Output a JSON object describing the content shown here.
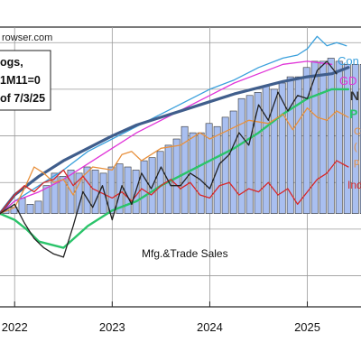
{
  "source_text": "rowser.com",
  "legend_box": {
    "line1": "ogs,",
    "line2": "1M11=0",
    "line3": "of 7/3/25"
  },
  "chart_data": {
    "type": "line",
    "x_ticks": [
      "2022",
      "2023",
      "2024",
      "2025"
    ],
    "x_range": [
      2021.85,
      2025.55
    ],
    "y_range": [
      -3.0,
      6.0
    ],
    "grid": true,
    "annotation": "Mfg.&Trade Sales",
    "series_labels": [
      {
        "text": "Con",
        "color": "#3aa0dc"
      },
      {
        "text": "GD",
        "color": "#e033d8"
      },
      {
        "text": "N",
        "color": "#333333"
      },
      {
        "text": "P",
        "color": "#2bc46a"
      },
      {
        "text": "C",
        "color": "#e8903c"
      },
      {
        "text": "(",
        "color": "#e8903c"
      },
      {
        "text": "p",
        "color": "#e8903c"
      },
      {
        "text": "Ind",
        "color": "#d82828"
      }
    ],
    "bars": {
      "name": "Mfg.&Trade Sales",
      "color": "#a9bff0",
      "start": 2021.91,
      "step": 0.0833,
      "values": [
        0.1,
        0.2,
        0.5,
        0.3,
        0.4,
        0.9,
        1.3,
        1.2,
        1.4,
        1.3,
        1.5,
        1.4,
        1.3,
        1.5,
        1.6,
        1.5,
        1.4,
        1.7,
        1.8,
        2.0,
        2.2,
        2.4,
        2.8,
        2.6,
        2.6,
        2.9,
        2.8,
        3.1,
        3.3,
        3.7,
        3.8,
        3.9,
        4.1,
        4.0,
        4.2,
        4.4,
        4.4,
        4.7,
        4.9,
        4.9,
        5.0,
        4.9,
        4.8,
        4.8,
        4.8,
        4.6
      ]
    },
    "series": [
      {
        "key": "consumption",
        "color": "#3aa0dc",
        "width": 1.3,
        "x": [
          2021.85,
          2022.0,
          2022.25,
          2022.5,
          2022.75,
          2023.0,
          2023.25,
          2023.5,
          2023.75,
          2024.0,
          2024.25,
          2024.5,
          2024.75,
          2024.9,
          2025.0,
          2025.1,
          2025.2,
          2025.3,
          2025.4
        ],
        "y": [
          0.0,
          0.4,
          0.9,
          1.4,
          2.0,
          2.4,
          2.8,
          3.2,
          3.6,
          4.0,
          4.3,
          4.7,
          5.0,
          5.1,
          5.3,
          5.7,
          5.4,
          5.5,
          5.4
        ]
      },
      {
        "key": "gdp",
        "color": "#e033d8",
        "width": 1.3,
        "x": [
          2021.85,
          2022.0,
          2022.25,
          2022.5,
          2022.75,
          2023.0,
          2023.25,
          2023.5,
          2023.75,
          2024.0,
          2024.25,
          2024.5,
          2024.75,
          2025.0,
          2025.25
        ],
        "y": [
          0.0,
          0.4,
          0.7,
          1.1,
          1.6,
          2.1,
          2.6,
          3.0,
          3.4,
          3.8,
          4.2,
          4.5,
          4.8,
          4.9,
          4.8
        ]
      },
      {
        "key": "nonfarm",
        "color": "#405e8c",
        "width": 3.2,
        "x": [
          2021.85,
          2022.0,
          2022.25,
          2022.5,
          2022.75,
          2023.0,
          2023.25,
          2023.5,
          2023.75,
          2024.0,
          2024.25,
          2024.5,
          2024.75,
          2025.0,
          2025.25,
          2025.42
        ],
        "y": [
          0.0,
          0.6,
          1.2,
          1.7,
          2.1,
          2.5,
          2.85,
          3.1,
          3.35,
          3.6,
          3.85,
          4.05,
          4.25,
          4.4,
          4.5,
          4.7
        ]
      },
      {
        "key": "personal-income",
        "color": "#2bc46a",
        "width": 2.4,
        "x": [
          2021.85,
          2022.0,
          2022.12,
          2022.25,
          2022.5,
          2022.75,
          2023.0,
          2023.25,
          2023.5,
          2023.75,
          2024.0,
          2024.25,
          2024.5,
          2024.75,
          2025.0,
          2025.25,
          2025.42
        ],
        "y": [
          0.0,
          -0.2,
          -0.5,
          -0.9,
          -1.1,
          -0.4,
          0.1,
          0.4,
          0.9,
          1.3,
          1.7,
          2.1,
          2.6,
          3.2,
          3.7,
          4.0,
          4.0
        ]
      },
      {
        "key": "consumption-orange",
        "color": "#e8903c",
        "width": 1.3,
        "x": [
          2021.85,
          2022.0,
          2022.1,
          2022.2,
          2022.3,
          2022.4,
          2022.5,
          2022.6,
          2022.7,
          2022.8,
          2023.0,
          2023.1,
          2023.2,
          2023.3,
          2023.5,
          2023.7,
          2023.9,
          2024.0,
          2024.2,
          2024.4,
          2024.6,
          2024.75,
          2024.85,
          2025.0,
          2025.1,
          2025.2,
          2025.3,
          2025.42
        ],
        "y": [
          0.0,
          0.2,
          0.8,
          1.5,
          1.3,
          1.0,
          1.1,
          0.6,
          1.2,
          1.5,
          1.4,
          1.9,
          2.0,
          1.7,
          2.1,
          2.2,
          2.6,
          2.4,
          2.7,
          3.0,
          2.9,
          3.2,
          2.7,
          3.4,
          3.1,
          3.0,
          3.3,
          3.1
        ]
      },
      {
        "key": "industrial-production",
        "color": "#d82828",
        "width": 1.3,
        "x": [
          2021.85,
          2022.0,
          2022.1,
          2022.2,
          2022.3,
          2022.4,
          2022.5,
          2022.6,
          2022.7,
          2022.8,
          2023.0,
          2023.1,
          2023.2,
          2023.3,
          2023.4,
          2023.5,
          2023.6,
          2023.7,
          2023.8,
          2023.9,
          2024.0,
          2024.1,
          2024.2,
          2024.3,
          2024.4,
          2024.5,
          2024.6,
          2024.7,
          2024.8,
          2024.9,
          2025.0,
          2025.1,
          2025.2,
          2025.3,
          2025.42
        ],
        "y": [
          0.0,
          0.6,
          0.9,
          0.7,
          1.0,
          1.1,
          1.4,
          0.9,
          1.2,
          0.8,
          0.5,
          0.7,
          0.4,
          0.8,
          0.6,
          0.9,
          1.1,
          0.8,
          1.0,
          0.6,
          0.5,
          0.9,
          1.0,
          0.6,
          0.8,
          0.7,
          1.0,
          0.6,
          0.8,
          0.3,
          0.7,
          1.1,
          1.3,
          1.7,
          1.5
        ]
      },
      {
        "key": "mfg-trade-sales-line",
        "color": "#222222",
        "width": 1.3,
        "x": [
          2021.85,
          2022.0,
          2022.1,
          2022.2,
          2022.3,
          2022.4,
          2022.5,
          2022.6,
          2022.7,
          2022.8,
          2022.9,
          2023.0,
          2023.1,
          2023.2,
          2023.3,
          2023.4,
          2023.5,
          2023.6,
          2023.7,
          2023.8,
          2023.9,
          2024.0,
          2024.1,
          2024.2,
          2024.3,
          2024.4,
          2024.5,
          2024.6,
          2024.7,
          2024.8,
          2024.9,
          2025.0,
          2025.1,
          2025.2,
          2025.3
        ],
        "y": [
          0.0,
          0.3,
          -0.3,
          -0.8,
          -1.1,
          -1.3,
          -1.4,
          -0.4,
          0.7,
          0.2,
          0.9,
          -0.2,
          0.9,
          0.3,
          1.3,
          0.8,
          1.5,
          0.9,
          0.9,
          1.3,
          1.1,
          0.8,
          1.6,
          1.9,
          2.6,
          2.2,
          3.5,
          3.0,
          3.9,
          3.3,
          3.8,
          3.7,
          4.6,
          4.9,
          4.5
        ]
      }
    ]
  }
}
